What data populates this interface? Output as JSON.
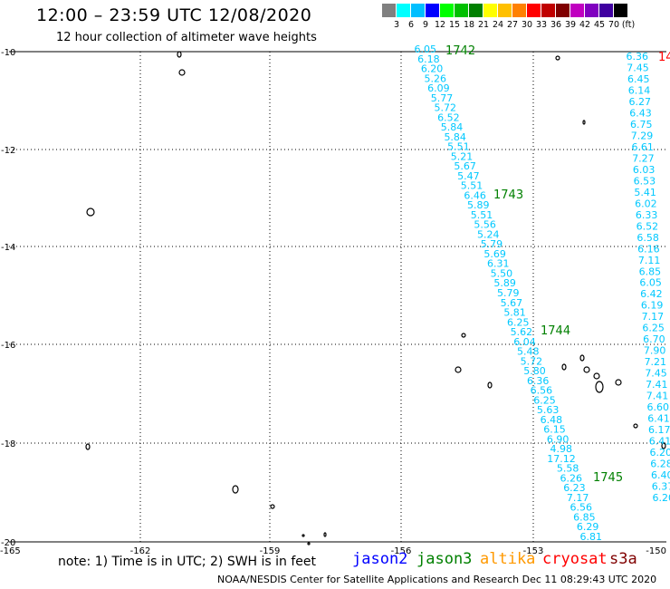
{
  "header": {
    "title": "12:00 – 23:59 UTC 12/08/2020",
    "subtitle": "12 hour collection of altimeter wave heights"
  },
  "scale": {
    "colors": [
      "#808080",
      "#00ffff",
      "#00bfff",
      "#0000ff",
      "#00ff00",
      "#00c000",
      "#008000",
      "#ffff00",
      "#ffc000",
      "#ff8000",
      "#ff0000",
      "#c00000",
      "#800000",
      "#c000c0",
      "#8000c0",
      "#4000a0",
      "#000000"
    ],
    "labels": [
      "3",
      "6",
      "9",
      "12",
      "15",
      "18",
      "21",
      "24",
      "27",
      "30",
      "33",
      "36",
      "39",
      "42",
      "45",
      "70",
      "(ft)"
    ]
  },
  "map": {
    "lat_labels": [
      "-10",
      "-12",
      "-14",
      "-16",
      "-18",
      "-20"
    ],
    "lon_labels": [
      "-165",
      "-162",
      "-159",
      "-156",
      "-153",
      "-150"
    ],
    "passes": [
      {
        "id": "1742",
        "labels": [
          "6.05",
          "6.18",
          "6.20",
          "5.26",
          "6.09",
          "5.77",
          "5.72",
          "6.52",
          "5.84",
          "5.84",
          "5.51",
          "5.21",
          "5.67",
          "5.47",
          "5.51",
          "6.46",
          "5.89",
          "5.51",
          "5.56",
          "5.24",
          "5.79",
          "5.69",
          "6.31",
          "5.50",
          "5.89",
          "5.79",
          "5.67",
          "5.81",
          "6.25",
          "5.62",
          "6.04",
          "5.48",
          "5.72",
          "5.80",
          "6.36",
          "6.56",
          "6.25",
          "5.63",
          "6.48",
          "6.15",
          "6.90",
          "4.98",
          "17.12",
          "5.58",
          "6.26",
          "6.23",
          "7.17",
          "6.56",
          "6.85",
          "6.29",
          "6.81"
        ]
      },
      {
        "id": "1743"
      },
      {
        "id": "1744"
      },
      {
        "id": "1745"
      }
    ],
    "right_pass": {
      "id": "14",
      "labels": [
        "6.36",
        "7.45",
        "6.45",
        "6.14",
        "6.27",
        "6.43",
        "6.75",
        "7.29",
        "6.61",
        "7.27",
        "6.03",
        "6.53",
        "5.41",
        "6.02",
        "6.33",
        "6.52",
        "6.58",
        "6.16",
        "7.11",
        "6.85",
        "6.05",
        "6.42",
        "6.19",
        "7.17",
        "6.25",
        "6.70",
        "7.90",
        "7.21",
        "7.45",
        "7.41",
        "7.41",
        "6.60",
        "6.41",
        "6.17",
        "6.41",
        "6.20",
        "6.28",
        "6.40",
        "6.37",
        "6.20"
      ]
    }
  },
  "footer": {
    "note": "note: 1) Time is in UTC; 2) SWH is in feet",
    "satellites": [
      {
        "name": "jason2",
        "color": "#0000ff"
      },
      {
        "name": "jason3",
        "color": "#008000"
      },
      {
        "name": "altika",
        "color": "#ff9900"
      },
      {
        "name": "cryosat",
        "color": "#ff0000"
      },
      {
        "name": "s3a",
        "color": "#800000"
      }
    ],
    "credit": "NOAA/NESDIS Center for Satellite Applications and Research   Dec 11 08:29:43 UTC 2020"
  }
}
